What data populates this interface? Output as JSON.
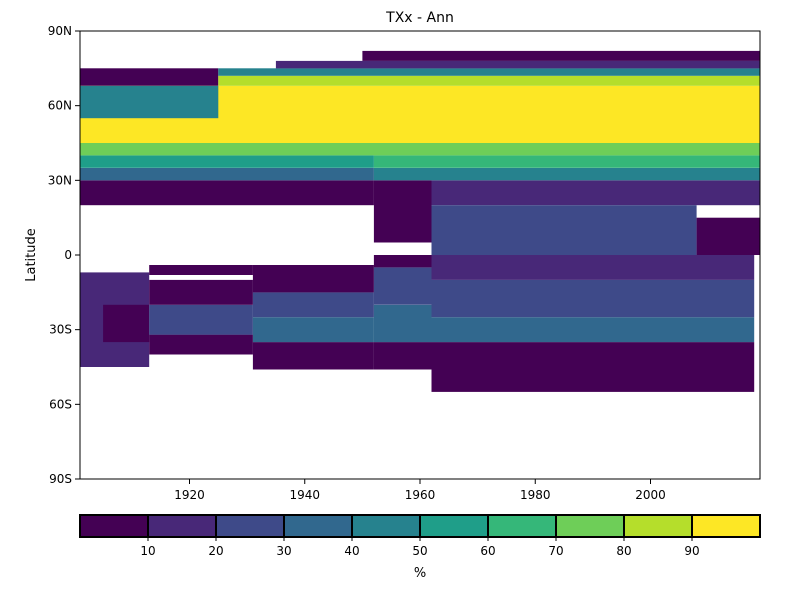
{
  "chart_data": {
    "type": "heatmap",
    "title": "TXx - Ann",
    "xlabel": "",
    "ylabel": "Latitude",
    "xlim": [
      1901,
      2019
    ],
    "ylim": [
      -90,
      90
    ],
    "x_ticks": [
      1920,
      1940,
      1960,
      1980,
      2000
    ],
    "x_tick_labels": [
      "1920",
      "1940",
      "1960",
      "1980",
      "2000"
    ],
    "y_ticks": [
      90,
      60,
      30,
      0,
      -30,
      -60,
      -90
    ],
    "y_tick_labels": [
      "90N",
      "60N",
      "30N",
      "0",
      "30S",
      "60S",
      "90S"
    ],
    "grid": false,
    "colorbar": {
      "label": "%",
      "placement": "bottom",
      "boundaries": [
        0,
        10,
        20,
        30,
        40,
        50,
        60,
        70,
        80,
        90,
        100
      ],
      "ticks": [
        10,
        20,
        30,
        40,
        50,
        60,
        70,
        80,
        90
      ],
      "tick_labels": [
        "10",
        "20",
        "30",
        "40",
        "50",
        "60",
        "70",
        "80",
        "90"
      ],
      "colors": [
        "#440154",
        "#482878",
        "#3e4a89",
        "#31688e",
        "#26828e",
        "#1f9e89",
        "#35b779",
        "#6ece58",
        "#b5de2b",
        "#fde725"
      ]
    },
    "cells_note": "Each region: years [x0,x1], latitude [lat0,lat1] (degrees, + north), value = % coverage class",
    "regions": [
      {
        "years": [
          1901,
          1913
        ],
        "lat": [
          -45,
          -7
        ],
        "value": 15
      },
      {
        "years": [
          1905,
          1913
        ],
        "lat": [
          -35,
          -20
        ],
        "value": 5
      },
      {
        "years": [
          1913,
          1931
        ],
        "lat": [
          -40,
          -32
        ],
        "value": 5
      },
      {
        "years": [
          1913,
          1931
        ],
        "lat": [
          -32,
          -20
        ],
        "value": 25
      },
      {
        "years": [
          1913,
          1931
        ],
        "lat": [
          -20,
          -10
        ],
        "value": 5
      },
      {
        "years": [
          1913,
          1931
        ],
        "lat": [
          -8,
          -4
        ],
        "value": 5
      },
      {
        "years": [
          1931,
          1952
        ],
        "lat": [
          -46,
          -35
        ],
        "value": 5
      },
      {
        "years": [
          1931,
          1952
        ],
        "lat": [
          -35,
          -25
        ],
        "value": 35
      },
      {
        "years": [
          1931,
          1952
        ],
        "lat": [
          -25,
          -15
        ],
        "value": 25
      },
      {
        "years": [
          1931,
          1952
        ],
        "lat": [
          -15,
          -4
        ],
        "value": 5
      },
      {
        "years": [
          1952,
          1962
        ],
        "lat": [
          -46,
          -35
        ],
        "value": 5
      },
      {
        "years": [
          1952,
          1962
        ],
        "lat": [
          -35,
          -20
        ],
        "value": 35
      },
      {
        "years": [
          1952,
          1962
        ],
        "lat": [
          -20,
          -5
        ],
        "value": 25
      },
      {
        "years": [
          1952,
          1962
        ],
        "lat": [
          -5,
          0
        ],
        "value": 5
      },
      {
        "years": [
          1962,
          2018
        ],
        "lat": [
          -55,
          -35
        ],
        "value": 5
      },
      {
        "years": [
          1962,
          2018
        ],
        "lat": [
          -35,
          -25
        ],
        "value": 35
      },
      {
        "years": [
          1962,
          2018
        ],
        "lat": [
          -25,
          -10
        ],
        "value": 25
      },
      {
        "years": [
          1962,
          2018
        ],
        "lat": [
          -10,
          0
        ],
        "value": 15
      },
      {
        "years": [
          1901,
          1952
        ],
        "lat": [
          20,
          30
        ],
        "value": 5
      },
      {
        "years": [
          1952,
          1962
        ],
        "lat": [
          5,
          30
        ],
        "value": 5
      },
      {
        "years": [
          1962,
          2019
        ],
        "lat": [
          20,
          30
        ],
        "value": 15
      },
      {
        "years": [
          1962,
          2008
        ],
        "lat": [
          0,
          20
        ],
        "value": 25
      },
      {
        "years": [
          2008,
          2019
        ],
        "lat": [
          0,
          15
        ],
        "value": 5
      },
      {
        "years": [
          1901,
          1952
        ],
        "lat": [
          30,
          35
        ],
        "value": 35
      },
      {
        "years": [
          1901,
          1952
        ],
        "lat": [
          35,
          40
        ],
        "value": 55
      },
      {
        "years": [
          1952,
          2019
        ],
        "lat": [
          30,
          35
        ],
        "value": 45
      },
      {
        "years": [
          1952,
          2019
        ],
        "lat": [
          35,
          40
        ],
        "value": 65
      },
      {
        "years": [
          1901,
          2019
        ],
        "lat": [
          40,
          45
        ],
        "value": 75
      },
      {
        "years": [
          1901,
          2019
        ],
        "lat": [
          45,
          68
        ],
        "value": 95
      },
      {
        "years": [
          1901,
          1925
        ],
        "lat": [
          55,
          68
        ],
        "value": 45
      },
      {
        "years": [
          1901,
          1925
        ],
        "lat": [
          68,
          75
        ],
        "value": 5
      },
      {
        "years": [
          1925,
          2019
        ],
        "lat": [
          68,
          72
        ],
        "value": 85
      },
      {
        "years": [
          1925,
          2019
        ],
        "lat": [
          72,
          75
        ],
        "value": 45
      },
      {
        "years": [
          1935,
          2019
        ],
        "lat": [
          75,
          78
        ],
        "value": 15
      },
      {
        "years": [
          1950,
          2019
        ],
        "lat": [
          78,
          82
        ],
        "value": 5
      }
    ]
  }
}
